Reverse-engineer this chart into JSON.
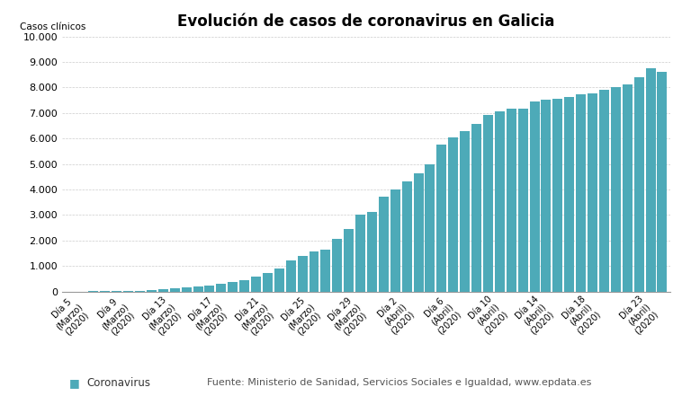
{
  "title": "Evolución de casos de coronavirus en Galicia",
  "ylabel": "Casos clínicos",
  "bar_color": "#4daab8",
  "background_color": "#ffffff",
  "ylim": [
    0,
    10000
  ],
  "yticks": [
    0,
    1000,
    2000,
    3000,
    4000,
    5000,
    6000,
    7000,
    8000,
    9000,
    10000
  ],
  "ytick_labels": [
    "0",
    "1.000",
    "2.000",
    "3.000",
    "4.000",
    "5.000",
    "6.000",
    "7.000",
    "8.000",
    "9.000",
    "10.000"
  ],
  "legend_label": "Coronavirus",
  "source_text": "Fuente: Ministerio de Sanidad, Servicios Sociales e Igualdad, www.epdata.es",
  "values": [
    3,
    4,
    9,
    14,
    18,
    25,
    34,
    49,
    101,
    147,
    177,
    196,
    241,
    295,
    371,
    443,
    583,
    726,
    915,
    1208,
    1415,
    1571,
    1651,
    2081,
    2455,
    3017,
    3140,
    3723,
    4017,
    4334,
    4636,
    5002,
    5745,
    6033,
    6302,
    6568,
    6930,
    7070,
    7178,
    7177,
    7467,
    7520,
    7547,
    7625,
    7749,
    7785,
    7926,
    8007,
    8110,
    8394,
    8754,
    8607
  ],
  "tick_positions": [
    0,
    4,
    8,
    12,
    16,
    20,
    24,
    28,
    32,
    36,
    40,
    44,
    49
  ],
  "tick_labels": [
    "Día 5\n(Marzo)\n(2020)",
    "Día 9\n(Marzo)\n(2020)",
    "Día 13\n(Marzo)\n(2020)",
    "Día 17\n(Marzo)\n(2020)",
    "Día 21\n(Marzo)\n(2020)",
    "Día 25\n(Marzo)\n(2020)",
    "Día 29\n(Marzo)\n(2020)",
    "Día 2\n(Abril)\n(2020)",
    "Día 6\n(Abril)\n(2020)",
    "Día 10\n(Abril)\n(2020)",
    "Día 14\n(Abril)\n(2020)",
    "Día 18\n(Abril)\n(2020)",
    "Día 23\n(Abril)\n(2020)"
  ]
}
